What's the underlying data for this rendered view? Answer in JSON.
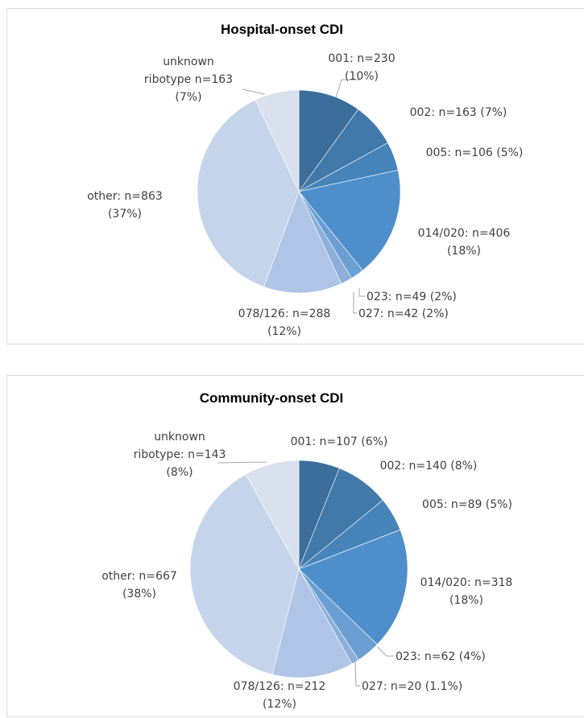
{
  "chart_data": [
    {
      "type": "pie",
      "title": "Hospital-onset CDI",
      "slices": [
        {
          "name": "001",
          "value": 230,
          "percent_label": "10%",
          "color": "#3c6e9b",
          "label_lines": [
            "001: n=230",
            "(10%)"
          ]
        },
        {
          "name": "002",
          "value": 163,
          "percent_label": "7%",
          "color": "#4179aa",
          "label_lines": [
            "002: n=163 (7%)"
          ]
        },
        {
          "name": "005",
          "value": 106,
          "percent_label": "5%",
          "color": "#4684ba",
          "label_lines": [
            "005: n=106 (5%)"
          ]
        },
        {
          "name": "014/020",
          "value": 406,
          "percent_label": "18%",
          "color": "#4e8fcb",
          "label_lines": [
            "014/020: n=406",
            "(18%)"
          ]
        },
        {
          "name": "023",
          "value": 49,
          "percent_label": "2%",
          "color": "#6b9fd3",
          "label_lines": [
            "023: n=49 (2%)"
          ]
        },
        {
          "name": "027",
          "value": 42,
          "percent_label": "2%",
          "color": "#8caed9",
          "label_lines": [
            "027: n=42 (2%)"
          ]
        },
        {
          "name": "078/126",
          "value": 288,
          "percent_label": "12%",
          "color": "#b0c4e6",
          "label_lines": [
            "078/126: n=288",
            "(12%)"
          ]
        },
        {
          "name": "other",
          "value": 863,
          "percent_label": "37%",
          "color": "#c5d4eb",
          "label_lines": [
            "other: n=863",
            "(37%)"
          ]
        },
        {
          "name": "unknown ribotype",
          "value": 163,
          "percent_label": "7%",
          "color": "#d9e1ee",
          "label_lines": [
            "unknown",
            "ribotype n=163",
            "(7%)"
          ]
        }
      ]
    },
    {
      "type": "pie",
      "title": "Community-onset CDI",
      "slices": [
        {
          "name": "001",
          "value": 107,
          "percent_label": "6%",
          "color": "#3c6e9b",
          "label_lines": [
            "001: n=107 (6%)"
          ]
        },
        {
          "name": "002",
          "value": 140,
          "percent_label": "8%",
          "color": "#4179aa",
          "label_lines": [
            "002: n=140 (8%)"
          ]
        },
        {
          "name": "005",
          "value": 89,
          "percent_label": "5%",
          "color": "#4684ba",
          "label_lines": [
            "005: n=89 (5%)"
          ]
        },
        {
          "name": "014/020",
          "value": 318,
          "percent_label": "18%",
          "color": "#4e8fcb",
          "label_lines": [
            "014/020: n=318",
            "(18%)"
          ]
        },
        {
          "name": "023",
          "value": 62,
          "percent_label": "4%",
          "color": "#6b9fd3",
          "label_lines": [
            "023: n=62 (4%)"
          ]
        },
        {
          "name": "027",
          "value": 20,
          "percent_label": "1.1%",
          "color": "#8caed9",
          "label_lines": [
            "027: n=20 (1.1%)"
          ]
        },
        {
          "name": "078/126",
          "value": 212,
          "percent_label": "12%",
          "color": "#b0c4e6",
          "label_lines": [
            "078/126: n=212",
            "(12%)"
          ]
        },
        {
          "name": "other",
          "value": 667,
          "percent_label": "38%",
          "color": "#c5d4eb",
          "label_lines": [
            "other: n=667",
            "(38%)"
          ]
        },
        {
          "name": "unknown ribotype",
          "value": 143,
          "percent_label": "8%",
          "color": "#d9e1ee",
          "label_lines": [
            "unknown",
            "ribotype: n=143",
            "(8%)"
          ]
        }
      ]
    }
  ]
}
